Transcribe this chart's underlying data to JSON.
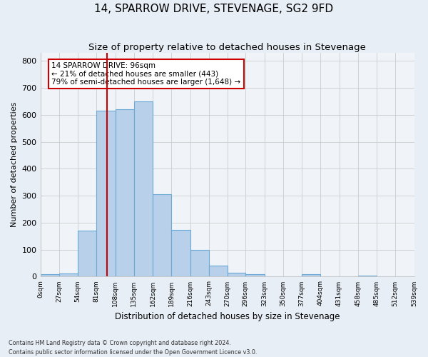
{
  "title": "14, SPARROW DRIVE, STEVENAGE, SG2 9FD",
  "subtitle": "Size of property relative to detached houses in Stevenage",
  "xlabel": "Distribution of detached houses by size in Stevenage",
  "ylabel": "Number of detached properties",
  "bin_edges": [
    0,
    27,
    54,
    81,
    108,
    135,
    162,
    189,
    216,
    243,
    270,
    296,
    323,
    350,
    377,
    404,
    431,
    458,
    485,
    512,
    539
  ],
  "bar_heights": [
    8,
    12,
    170,
    615,
    620,
    650,
    305,
    173,
    98,
    40,
    15,
    10,
    0,
    0,
    8,
    0,
    0,
    5,
    0,
    0
  ],
  "bar_color": "#b8d0ea",
  "bar_edgecolor": "#6aaad4",
  "property_size": 96,
  "vline_color": "#cc0000",
  "annotation_text": "14 SPARROW DRIVE: 96sqm\n← 21% of detached houses are smaller (443)\n79% of semi-detached houses are larger (1,648) →",
  "annotation_boxcolor": "#ffffff",
  "annotation_edgecolor": "#cc0000",
  "ylim": [
    0,
    830
  ],
  "tick_labels": [
    "0sqm",
    "27sqm",
    "54sqm",
    "81sqm",
    "108sqm",
    "135sqm",
    "162sqm",
    "189sqm",
    "216sqm",
    "243sqm",
    "270sqm",
    "296sqm",
    "323sqm",
    "350sqm",
    "377sqm",
    "404sqm",
    "431sqm",
    "458sqm",
    "485sqm",
    "512sqm",
    "539sqm"
  ],
  "footer_text": "Contains HM Land Registry data © Crown copyright and database right 2024.\nContains public sector information licensed under the Open Government Licence v3.0.",
  "background_color": "#e8eef5",
  "plot_background_color": "#f0f4f9",
  "grid_color": "#cccccc",
  "title_fontsize": 11,
  "subtitle_fontsize": 9.5
}
